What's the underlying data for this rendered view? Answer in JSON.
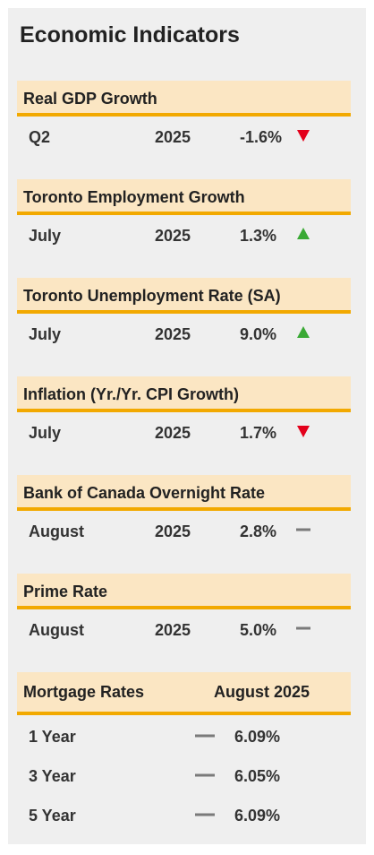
{
  "title": "Economic Indicators",
  "colors": {
    "up": "#3aa935",
    "down": "#e3001b",
    "flat": "#7a7a7a",
    "accent": "#f2a900",
    "header_bg": "#fbe6c3"
  },
  "indicators": [
    {
      "label": "Real GDP Growth",
      "period": "Q2",
      "year": "2025",
      "value": "-1.6%",
      "trend": "down"
    },
    {
      "label": "Toronto Employment Growth",
      "period": "July",
      "year": "2025",
      "value": "1.3%",
      "trend": "up"
    },
    {
      "label": "Toronto Unemployment Rate (SA)",
      "period": "July",
      "year": "2025",
      "value": "9.0%",
      "trend": "up"
    },
    {
      "label": "Inflation (Yr./Yr. CPI Growth)",
      "period": "July",
      "year": "2025",
      "value": "1.7%",
      "trend": "down"
    },
    {
      "label": "Bank of Canada Overnight Rate",
      "period": "August",
      "year": "2025",
      "value": "2.8%",
      "trend": "flat"
    },
    {
      "label": "Prime Rate",
      "period": "August",
      "year": "2025",
      "value": "5.0%",
      "trend": "flat"
    }
  ],
  "mortgage": {
    "label": "Mortgage Rates",
    "date": "August 2025",
    "rows": [
      {
        "term": "1 Year",
        "rate": "6.09%",
        "trend": "flat"
      },
      {
        "term": "3 Year",
        "rate": "6.05%",
        "trend": "flat"
      },
      {
        "term": "5 Year",
        "rate": "6.09%",
        "trend": "flat"
      }
    ]
  }
}
